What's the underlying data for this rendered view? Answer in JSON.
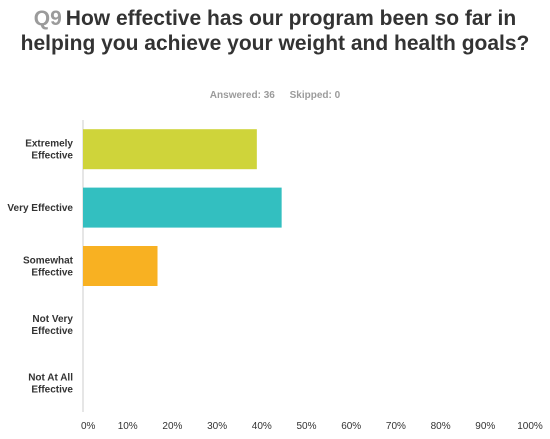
{
  "question": {
    "number": "Q9",
    "text": "How effective has our program been so far in helping you achieve your weight and health goals?"
  },
  "stats": {
    "answered": "Answered: 36",
    "skipped": "Skipped: 0"
  },
  "chart_data": {
    "type": "bar",
    "orientation": "horizontal",
    "categories": [
      [
        "Extremely",
        "Effective"
      ],
      [
        "Very Effective"
      ],
      [
        "Somewhat",
        "Effective"
      ],
      [
        "Not Very",
        "Effective"
      ],
      [
        "Not At All",
        "Effective"
      ]
    ],
    "values": [
      38.89,
      44.44,
      16.67,
      0,
      0
    ],
    "colors": [
      "#cfd43a",
      "#33bfc0",
      "#f8b122",
      "#cccccc",
      "#cccccc"
    ],
    "xlim": [
      0,
      100
    ],
    "xticks": [
      0,
      10,
      20,
      30,
      40,
      50,
      60,
      70,
      80,
      90,
      100
    ],
    "xtick_labels": [
      "0%",
      "10%",
      "20%",
      "30%",
      "40%",
      "50%",
      "60%",
      "70%",
      "80%",
      "90%",
      "100%"
    ],
    "grid": false,
    "legend": "none"
  }
}
